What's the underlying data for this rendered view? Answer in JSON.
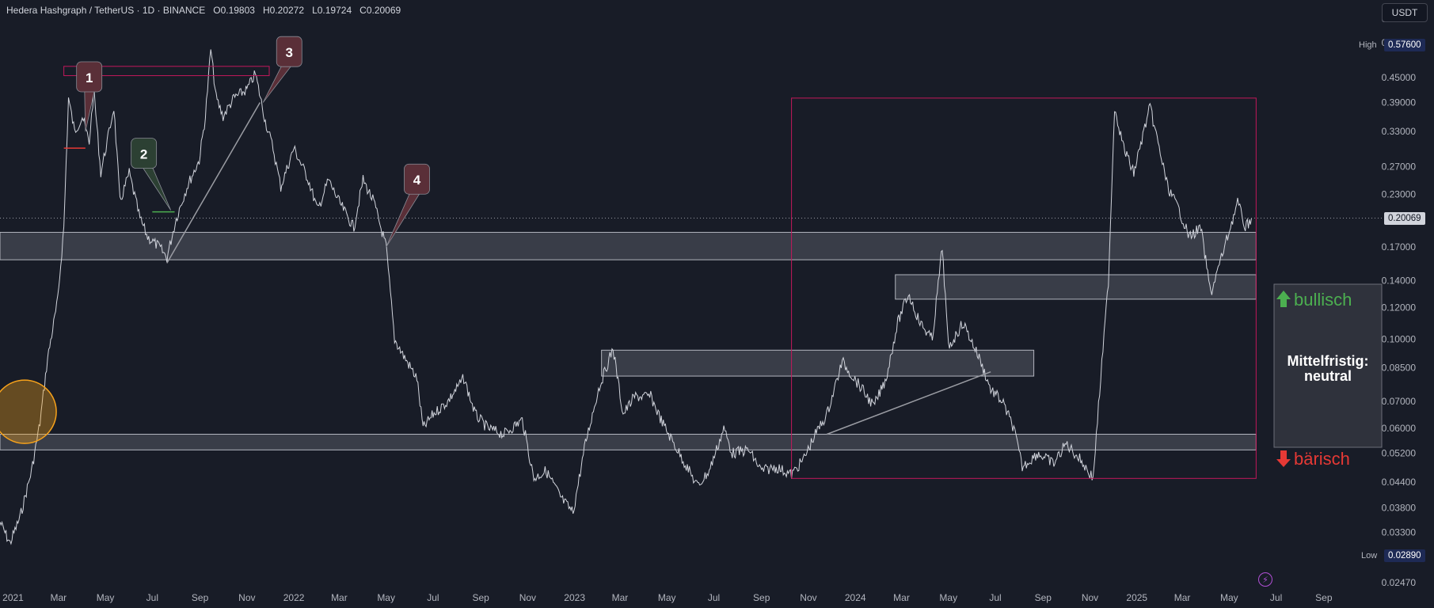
{
  "header": {
    "symbol": "Hedera Hashgraph / TetherUS · 1D · BINANCE",
    "open_label": "O",
    "open": "0.19803",
    "high_label": "H",
    "high": "0.20272",
    "low_label": "L",
    "low": "0.19724",
    "close_label": "C",
    "close": "0.20069"
  },
  "currency_button": "USDT",
  "price_tags": {
    "high_label": "High",
    "high_value": "0.57600",
    "low_label": "Low",
    "low_value": "0.02890",
    "last_value": "0.20069"
  },
  "colors": {
    "background": "#181c27",
    "price_line": "#d1d4dc",
    "zone_fill": "rgba(120,123,134,0.35)",
    "zone_border": "#b2b5be",
    "rect_red": "#c2185b",
    "bullish": "#4caf50",
    "bearish": "#e53935",
    "orange": "#f7a21b",
    "callout_red": "#5a2f38",
    "callout_green": "#2c4033"
  },
  "icons": {
    "lightning": "lightning-icon"
  },
  "chart_data": {
    "type": "line",
    "y_scale": "log",
    "ylim": [
      0.0245,
      0.63
    ],
    "xlim": [
      "2020-12-15",
      "2025-09-30"
    ],
    "y_ticks": [
      0.63,
      0.55,
      0.45,
      0.39,
      0.33,
      0.27,
      0.23,
      0.17,
      0.14,
      0.12,
      0.1,
      0.085,
      0.07,
      0.06,
      0.052,
      0.044,
      0.038,
      0.033,
      0.0247
    ],
    "y_tick_labels": [
      "0.63000",
      "0.55000",
      "0.45000",
      "0.39000",
      "0.33000",
      "0.27000",
      "0.23000",
      "0.17000",
      "0.14000",
      "0.12000",
      "0.10000",
      "0.08500",
      "0.07000",
      "0.06000",
      "0.05200",
      "0.04400",
      "0.03800",
      "0.03300",
      "0.02470"
    ],
    "x_ticks": [
      {
        "date": "2021-01-01",
        "label": "2021"
      },
      {
        "date": "2021-03-01",
        "label": "Mar"
      },
      {
        "date": "2021-05-01",
        "label": "May"
      },
      {
        "date": "2021-07-01",
        "label": "Jul"
      },
      {
        "date": "2021-09-01",
        "label": "Sep"
      },
      {
        "date": "2021-11-01",
        "label": "Nov"
      },
      {
        "date": "2022-01-01",
        "label": "2022"
      },
      {
        "date": "2022-03-01",
        "label": "Mar"
      },
      {
        "date": "2022-05-01",
        "label": "May"
      },
      {
        "date": "2022-07-01",
        "label": "Jul"
      },
      {
        "date": "2022-09-01",
        "label": "Sep"
      },
      {
        "date": "2022-11-01",
        "label": "Nov"
      },
      {
        "date": "2023-01-01",
        "label": "2023"
      },
      {
        "date": "2023-03-01",
        "label": "Mar"
      },
      {
        "date": "2023-05-01",
        "label": "May"
      },
      {
        "date": "2023-07-01",
        "label": "Jul"
      },
      {
        "date": "2023-09-01",
        "label": "Sep"
      },
      {
        "date": "2023-11-01",
        "label": "Nov"
      },
      {
        "date": "2024-01-01",
        "label": "2024"
      },
      {
        "date": "2024-03-01",
        "label": "Mar"
      },
      {
        "date": "2024-05-01",
        "label": "May"
      },
      {
        "date": "2024-07-01",
        "label": "Jul"
      },
      {
        "date": "2024-09-01",
        "label": "Sep"
      },
      {
        "date": "2024-11-01",
        "label": "Nov"
      },
      {
        "date": "2025-01-01",
        "label": "2025"
      },
      {
        "date": "2025-03-01",
        "label": "Mar"
      },
      {
        "date": "2025-05-01",
        "label": "May"
      },
      {
        "date": "2025-07-01",
        "label": "Jul"
      },
      {
        "date": "2025-09-01",
        "label": "Sep"
      }
    ],
    "series": [
      {
        "points": [
          [
            "2020-12-15",
            0.035
          ],
          [
            "2020-12-28",
            0.031
          ],
          [
            "2021-01-10",
            0.036
          ],
          [
            "2021-01-25",
            0.047
          ],
          [
            "2021-02-05",
            0.062
          ],
          [
            "2021-02-15",
            0.09
          ],
          [
            "2021-02-28",
            0.125
          ],
          [
            "2021-03-08",
            0.19
          ],
          [
            "2021-03-14",
            0.4
          ],
          [
            "2021-03-22",
            0.33
          ],
          [
            "2021-04-01",
            0.36
          ],
          [
            "2021-04-10",
            0.31
          ],
          [
            "2021-04-16",
            0.42
          ],
          [
            "2021-04-25",
            0.26
          ],
          [
            "2021-05-06",
            0.33
          ],
          [
            "2021-05-12",
            0.38
          ],
          [
            "2021-05-20",
            0.22
          ],
          [
            "2021-06-01",
            0.26
          ],
          [
            "2021-06-15",
            0.2
          ],
          [
            "2021-06-25",
            0.18
          ],
          [
            "2021-07-10",
            0.17
          ],
          [
            "2021-07-20",
            0.16
          ],
          [
            "2021-08-01",
            0.2
          ],
          [
            "2021-08-15",
            0.24
          ],
          [
            "2021-08-31",
            0.28
          ],
          [
            "2021-09-08",
            0.36
          ],
          [
            "2021-09-15",
            0.53
          ],
          [
            "2021-09-22",
            0.4
          ],
          [
            "2021-10-01",
            0.36
          ],
          [
            "2021-10-15",
            0.4
          ],
          [
            "2021-11-01",
            0.42
          ],
          [
            "2021-11-12",
            0.46
          ],
          [
            "2021-11-25",
            0.35
          ],
          [
            "2021-12-05",
            0.3
          ],
          [
            "2021-12-15",
            0.24
          ],
          [
            "2022-01-01",
            0.3
          ],
          [
            "2022-01-20",
            0.25
          ],
          [
            "2022-02-01",
            0.21
          ],
          [
            "2022-02-15",
            0.25
          ],
          [
            "2022-03-01",
            0.22
          ],
          [
            "2022-03-20",
            0.19
          ],
          [
            "2022-04-01",
            0.25
          ],
          [
            "2022-04-15",
            0.22
          ],
          [
            "2022-05-01",
            0.17
          ],
          [
            "2022-05-12",
            0.1
          ],
          [
            "2022-05-25",
            0.09
          ],
          [
            "2022-06-10",
            0.08
          ],
          [
            "2022-06-18",
            0.06
          ],
          [
            "2022-07-01",
            0.065
          ],
          [
            "2022-07-20",
            0.07
          ],
          [
            "2022-08-10",
            0.08
          ],
          [
            "2022-08-25",
            0.065
          ],
          [
            "2022-09-10",
            0.06
          ],
          [
            "2022-10-01",
            0.058
          ],
          [
            "2022-10-25",
            0.063
          ],
          [
            "2022-11-09",
            0.045
          ],
          [
            "2022-11-25",
            0.047
          ],
          [
            "2022-12-15",
            0.04
          ],
          [
            "2022-12-30",
            0.037
          ],
          [
            "2023-01-15",
            0.055
          ],
          [
            "2023-02-01",
            0.075
          ],
          [
            "2023-02-20",
            0.095
          ],
          [
            "2023-03-05",
            0.065
          ],
          [
            "2023-03-20",
            0.072
          ],
          [
            "2023-04-10",
            0.072
          ],
          [
            "2023-04-25",
            0.062
          ],
          [
            "2023-05-10",
            0.055
          ],
          [
            "2023-06-10",
            0.043
          ],
          [
            "2023-06-25",
            0.047
          ],
          [
            "2023-07-14",
            0.06
          ],
          [
            "2023-07-25",
            0.052
          ],
          [
            "2023-08-15",
            0.053
          ],
          [
            "2023-09-01",
            0.047
          ],
          [
            "2023-09-20",
            0.048
          ],
          [
            "2023-10-10",
            0.046
          ],
          [
            "2023-10-25",
            0.05
          ],
          [
            "2023-11-10",
            0.058
          ],
          [
            "2023-11-25",
            0.065
          ],
          [
            "2023-12-15",
            0.088
          ],
          [
            "2024-01-10",
            0.075
          ],
          [
            "2024-01-25",
            0.068
          ],
          [
            "2024-02-10",
            0.08
          ],
          [
            "2024-02-25",
            0.11
          ],
          [
            "2024-03-10",
            0.13
          ],
          [
            "2024-03-25",
            0.11
          ],
          [
            "2024-04-10",
            0.1
          ],
          [
            "2024-04-23",
            0.17
          ],
          [
            "2024-05-01",
            0.095
          ],
          [
            "2024-05-20",
            0.11
          ],
          [
            "2024-06-10",
            0.09
          ],
          [
            "2024-06-25",
            0.075
          ],
          [
            "2024-07-10",
            0.07
          ],
          [
            "2024-07-25",
            0.06
          ],
          [
            "2024-08-05",
            0.048
          ],
          [
            "2024-08-25",
            0.052
          ],
          [
            "2024-09-15",
            0.049
          ],
          [
            "2024-10-01",
            0.055
          ],
          [
            "2024-10-20",
            0.05
          ],
          [
            "2024-11-05",
            0.045
          ],
          [
            "2024-11-15",
            0.08
          ],
          [
            "2024-11-25",
            0.14
          ],
          [
            "2024-12-03",
            0.38
          ],
          [
            "2024-12-15",
            0.3
          ],
          [
            "2024-12-28",
            0.26
          ],
          [
            "2025-01-10",
            0.33
          ],
          [
            "2025-01-18",
            0.38
          ],
          [
            "2025-01-30",
            0.3
          ],
          [
            "2025-02-10",
            0.24
          ],
          [
            "2025-02-25",
            0.21
          ],
          [
            "2025-03-10",
            0.18
          ],
          [
            "2025-03-25",
            0.19
          ],
          [
            "2025-04-07",
            0.13
          ],
          [
            "2025-04-25",
            0.17
          ],
          [
            "2025-05-12",
            0.22
          ],
          [
            "2025-05-22",
            0.19
          ],
          [
            "2025-05-30",
            0.20069
          ]
        ]
      }
    ],
    "last_price": 0.20069,
    "zones": [
      {
        "from": "2020-12-15",
        "to": "2025-06-05",
        "low": 0.158,
        "high": 0.185
      },
      {
        "from": "2024-02-22",
        "to": "2025-06-05",
        "low": 0.126,
        "high": 0.145
      },
      {
        "from": "2023-02-05",
        "to": "2024-08-20",
        "low": 0.081,
        "high": 0.094
      },
      {
        "from": "2020-12-15",
        "to": "2025-06-05",
        "low": 0.053,
        "high": 0.058
      }
    ],
    "boxes": [
      {
        "from": "2021-03-08",
        "to": "2021-11-30",
        "low": 0.455,
        "high": 0.48,
        "color": "rect_red"
      },
      {
        "from": "2023-10-10",
        "to": "2025-06-05",
        "low": 0.045,
        "high": 0.4,
        "color": "rect_red"
      }
    ],
    "trendlines": [
      {
        "from": [
          "2021-07-20",
          0.155
        ],
        "to": [
          "2021-11-18",
          0.39
        ]
      },
      {
        "from": [
          "2023-11-25",
          0.058
        ],
        "to": [
          "2024-06-25",
          0.083
        ]
      }
    ],
    "markers": [
      {
        "date_from": "2021-03-08",
        "date_to": "2021-04-05",
        "value": 0.3,
        "color": "bearish"
      },
      {
        "date_from": "2021-07-01",
        "date_to": "2021-07-30",
        "value": 0.208,
        "color": "bullish"
      }
    ],
    "circle": {
      "date": "2021-01-16",
      "value": 0.066
    },
    "callouts": [
      {
        "label": "1",
        "date": "2021-04-10",
        "value": 0.45,
        "tip": [
          "2021-04-05",
          0.33
        ],
        "style": "callout_red"
      },
      {
        "label": "2",
        "date": "2021-06-20",
        "value": 0.29,
        "tip": [
          "2021-07-25",
          0.21
        ],
        "style": "callout_green"
      },
      {
        "label": "3",
        "date": "2021-12-26",
        "value": 0.52,
        "tip": [
          "2021-11-22",
          0.39
        ],
        "style": "callout_red"
      },
      {
        "label": "4",
        "date": "2022-06-10",
        "value": 0.25,
        "tip": [
          "2022-05-01",
          0.17
        ],
        "style": "callout_red"
      }
    ],
    "annotations": {
      "bullish": "bullisch",
      "bearish": "bärisch",
      "neutral_line1": "Mittelfristig:",
      "neutral_line2": "neutral"
    }
  }
}
